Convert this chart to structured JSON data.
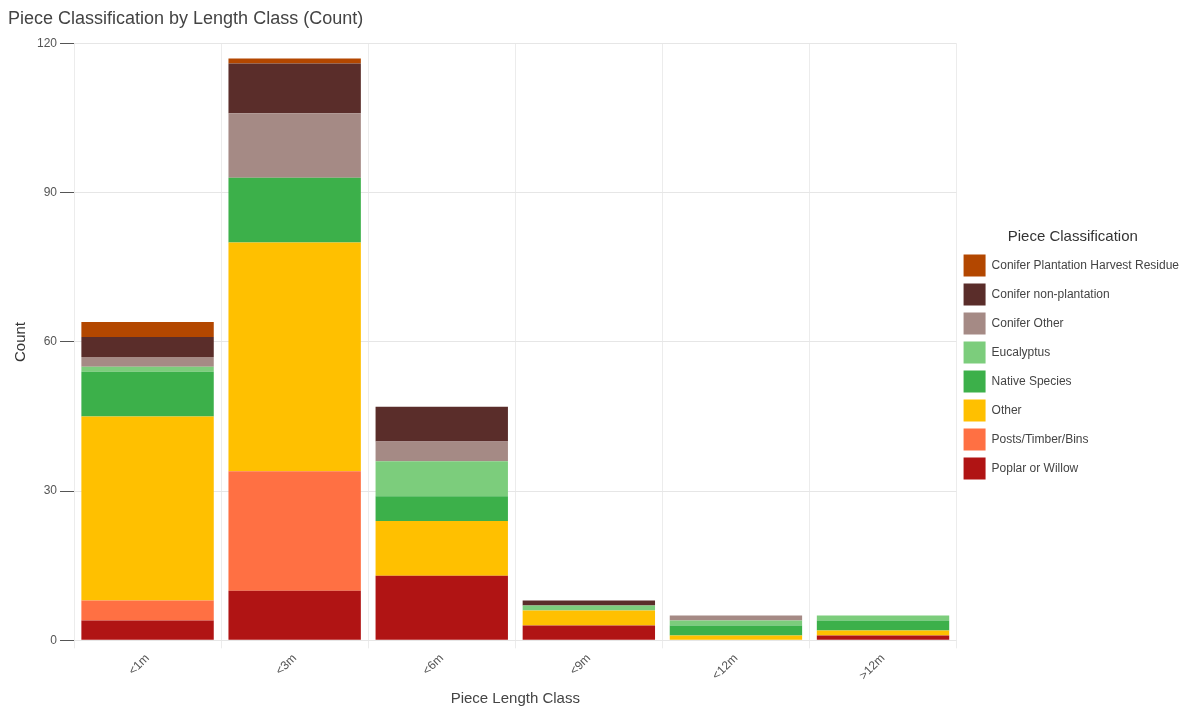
{
  "chart_data": {
    "type": "bar",
    "title": "Piece Classification by Length Class (Count)",
    "xlabel": "Piece Length Class",
    "ylabel": "Count",
    "legend_title": "Piece Classification",
    "categories": [
      "<1m",
      "<3m",
      "<6m",
      "<9m",
      "<12m",
      ">12m"
    ],
    "stacked": true,
    "ylim": [
      0,
      120
    ],
    "yticks": [
      0,
      30,
      60,
      90,
      120
    ],
    "grid": true,
    "legend": "right",
    "series": [
      {
        "name": "Poplar or Willow",
        "color": "#b01414",
        "values": [
          4,
          10,
          13,
          3,
          0,
          1
        ]
      },
      {
        "name": "Posts/Timber/Bins",
        "color": "#ff7043",
        "values": [
          4,
          24,
          0,
          0,
          0,
          0
        ]
      },
      {
        "name": "Other",
        "color": "#ffc000",
        "values": [
          37,
          46,
          11,
          3,
          1,
          1
        ]
      },
      {
        "name": "Native Species",
        "color": "#3cb04a",
        "values": [
          9,
          13,
          5,
          0,
          2,
          2
        ]
      },
      {
        "name": "Eucalyptus",
        "color": "#7ccd7c",
        "values": [
          1,
          0,
          7,
          1,
          1,
          1
        ]
      },
      {
        "name": "Conifer Other",
        "color": "#a58a85",
        "values": [
          2,
          13,
          4,
          0,
          1,
          0
        ]
      },
      {
        "name": "Conifer non-plantation",
        "color": "#5a2d2a",
        "values": [
          4,
          10,
          7,
          1,
          0,
          0
        ]
      },
      {
        "name": "Conifer Plantation Harvest Residue",
        "color": "#b34700",
        "values": [
          3,
          1,
          0,
          0,
          0,
          0
        ]
      }
    ]
  }
}
